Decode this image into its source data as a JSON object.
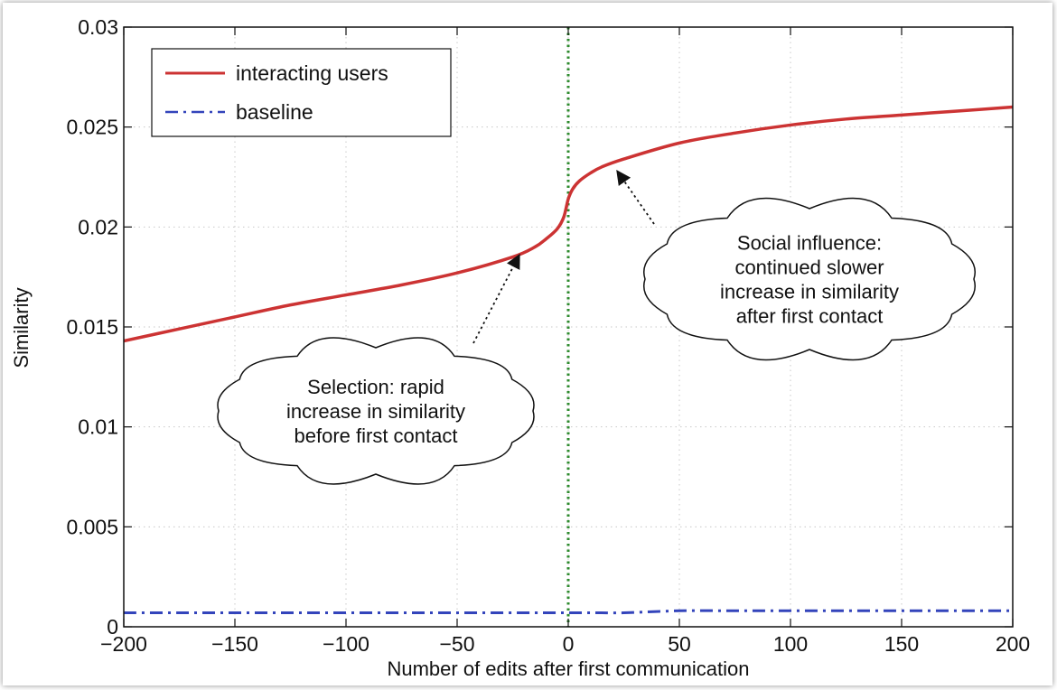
{
  "chart_data": {
    "type": "line",
    "xlabel": "Number of edits after first communication",
    "ylabel": "Similarity",
    "xlim": [
      -200,
      200
    ],
    "ylim": [
      0,
      0.03
    ],
    "x_ticks": [
      -200,
      -150,
      -100,
      -50,
      0,
      50,
      100,
      150,
      200
    ],
    "x_tick_labels": [
      "−200",
      "−150",
      "−100",
      "−50",
      "0",
      "50",
      "100",
      "150",
      "200"
    ],
    "y_ticks": [
      0,
      0.005,
      0.01,
      0.015,
      0.02,
      0.025,
      0.03
    ],
    "y_tick_labels": [
      "0",
      "0.005",
      "0.01",
      "0.015",
      "0.02",
      "0.025",
      "0.03"
    ],
    "grid": true,
    "legend_position": "top-left",
    "vline": {
      "x": 0,
      "color": "#2e8b2e",
      "style": "dotted"
    },
    "x": [
      -200,
      -175,
      -150,
      -125,
      -100,
      -75,
      -50,
      -25,
      -15,
      -10,
      -5,
      -2,
      0,
      2,
      5,
      10,
      15,
      25,
      50,
      75,
      100,
      125,
      150,
      175,
      200
    ],
    "series": [
      {
        "name": "interacting users",
        "color": "#cc3333",
        "style": "solid",
        "values": [
          0.0143,
          0.0149,
          0.0155,
          0.0161,
          0.0166,
          0.0171,
          0.0177,
          0.0185,
          0.019,
          0.0194,
          0.0199,
          0.0205,
          0.0214,
          0.0219,
          0.0223,
          0.0227,
          0.023,
          0.0234,
          0.0242,
          0.0247,
          0.0251,
          0.0254,
          0.0256,
          0.0258,
          0.026
        ]
      },
      {
        "name": "baseline",
        "color": "#3344bb",
        "style": "dashdot",
        "values": [
          0.0007,
          0.0007,
          0.0007,
          0.0007,
          0.0007,
          0.0007,
          0.0007,
          0.0007,
          0.0007,
          0.0007,
          0.0007,
          0.0007,
          0.0007,
          0.0007,
          0.0007,
          0.0007,
          0.0007,
          0.0007,
          0.0008,
          0.0008,
          0.0008,
          0.0008,
          0.0008,
          0.0008,
          0.0008
        ]
      }
    ],
    "annotations": [
      {
        "lines": [
          "Selection: rapid",
          "increase in similarity",
          "before first contact"
        ],
        "target": {
          "x": -22,
          "y": 0.0186
        }
      },
      {
        "lines": [
          "Social influence:",
          "continued slower",
          "increase in similarity",
          "after first contact"
        ],
        "target": {
          "x": 22,
          "y": 0.0228
        }
      }
    ]
  }
}
